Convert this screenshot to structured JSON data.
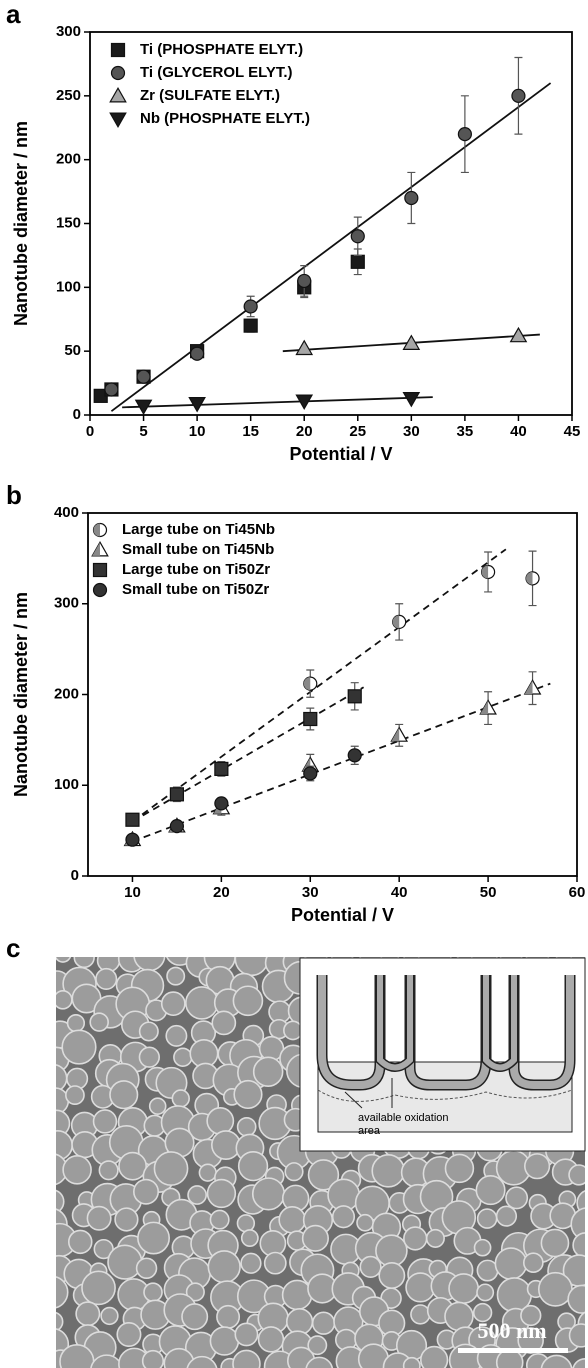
{
  "chart_data": [
    {
      "type": "scatter",
      "panel_label": "a",
      "x_label": "Potential / V",
      "y_label": "Nanotube diameter / nm",
      "xlim": [
        0,
        45
      ],
      "xticks": [
        0,
        5,
        10,
        15,
        20,
        25,
        30,
        35,
        40,
        45
      ],
      "ylim": [
        0,
        300
      ],
      "yticks": [
        0,
        50,
        100,
        150,
        200,
        250,
        300
      ],
      "legend": "upper-left",
      "series": [
        {
          "name": "Ti  (PHOSPHATE ELYT.)",
          "marker": "square",
          "color": "#1a1a1a",
          "x": [
            1,
            2,
            5,
            10,
            15,
            20,
            25
          ],
          "values": [
            15,
            20,
            30,
            50,
            70,
            100,
            120
          ],
          "errors": [
            null,
            null,
            null,
            null,
            5,
            8,
            10
          ]
        },
        {
          "name": "Ti  (GLYCEROL ELYT.)",
          "marker": "circle",
          "color": "#555555",
          "x": [
            2,
            5,
            10,
            15,
            20,
            25,
            30,
            35,
            40
          ],
          "values": [
            20,
            30,
            48,
            85,
            105,
            140,
            170,
            220,
            250
          ],
          "errors": [
            null,
            null,
            null,
            8,
            12,
            15,
            20,
            30,
            30
          ]
        },
        {
          "name": "Zr  (SULFATE ELYT.)",
          "marker": "triangle-up",
          "color": "#a6a6a6",
          "x": [
            20,
            30,
            40
          ],
          "values": [
            52,
            56,
            62
          ],
          "errors": [
            null,
            null,
            null
          ]
        },
        {
          "name": "Nb  (PHOSPHATE ELYT.)",
          "marker": "triangle-down",
          "color": "#1a1a1a",
          "x": [
            5,
            10,
            20,
            30
          ],
          "values": [
            7,
            9,
            11,
            13
          ],
          "errors": [
            null,
            null,
            null,
            null
          ]
        }
      ],
      "fits": [
        {
          "dash": false,
          "x": [
            2,
            43
          ],
          "values": [
            3,
            260
          ]
        },
        {
          "dash": false,
          "x": [
            18,
            42
          ],
          "values": [
            50,
            63
          ]
        },
        {
          "dash": false,
          "x": [
            3,
            32
          ],
          "values": [
            6,
            14
          ]
        }
      ]
    },
    {
      "type": "scatter",
      "panel_label": "b",
      "x_label": "Potential / V",
      "y_label": "Nanotube diameter / nm",
      "xlim": [
        5,
        60
      ],
      "xticks": [
        10,
        20,
        30,
        40,
        50,
        60
      ],
      "ylim": [
        0,
        400
      ],
      "yticks": [
        0,
        100,
        200,
        300,
        400
      ],
      "legend": "upper-left",
      "series": [
        {
          "name": "Large tube on Ti45Nb",
          "marker": "half-circle",
          "color": "#888888",
          "x": [
            30,
            40,
            50,
            55
          ],
          "values": [
            212,
            280,
            335,
            328
          ],
          "errors": [
            15,
            20,
            22,
            30
          ]
        },
        {
          "name": "Small tube on Ti45Nb",
          "marker": "half-triangle",
          "color": "#888888",
          "x": [
            10,
            15,
            20,
            30,
            40,
            50,
            55
          ],
          "values": [
            40,
            55,
            75,
            122,
            155,
            185,
            207
          ],
          "errors": [
            5,
            5,
            8,
            12,
            12,
            18,
            18
          ]
        },
        {
          "name": "Large tube on Ti50Zr",
          "marker": "square",
          "color": "#333333",
          "x": [
            10,
            15,
            20,
            30,
            35
          ],
          "values": [
            62,
            90,
            118,
            173,
            198
          ],
          "errors": [
            6,
            8,
            8,
            12,
            15
          ]
        },
        {
          "name": "Small tube on Ti50Zr",
          "marker": "circle",
          "color": "#333333",
          "x": [
            10,
            15,
            20,
            30,
            35
          ],
          "values": [
            40,
            55,
            80,
            113,
            133
          ],
          "errors": [
            4,
            5,
            5,
            8,
            10
          ]
        }
      ],
      "fits": [
        {
          "dash": true,
          "x": [
            10,
            52
          ],
          "values": [
            60,
            360
          ]
        },
        {
          "dash": true,
          "x": [
            10,
            36
          ],
          "values": [
            60,
            208
          ]
        },
        {
          "dash": true,
          "x": [
            10,
            57
          ],
          "values": [
            38,
            212
          ]
        }
      ]
    }
  ],
  "panel_c": {
    "panel_label": "c",
    "inset_label": [
      "available oxidation",
      "area"
    ],
    "scale_bar": "500 nm"
  }
}
